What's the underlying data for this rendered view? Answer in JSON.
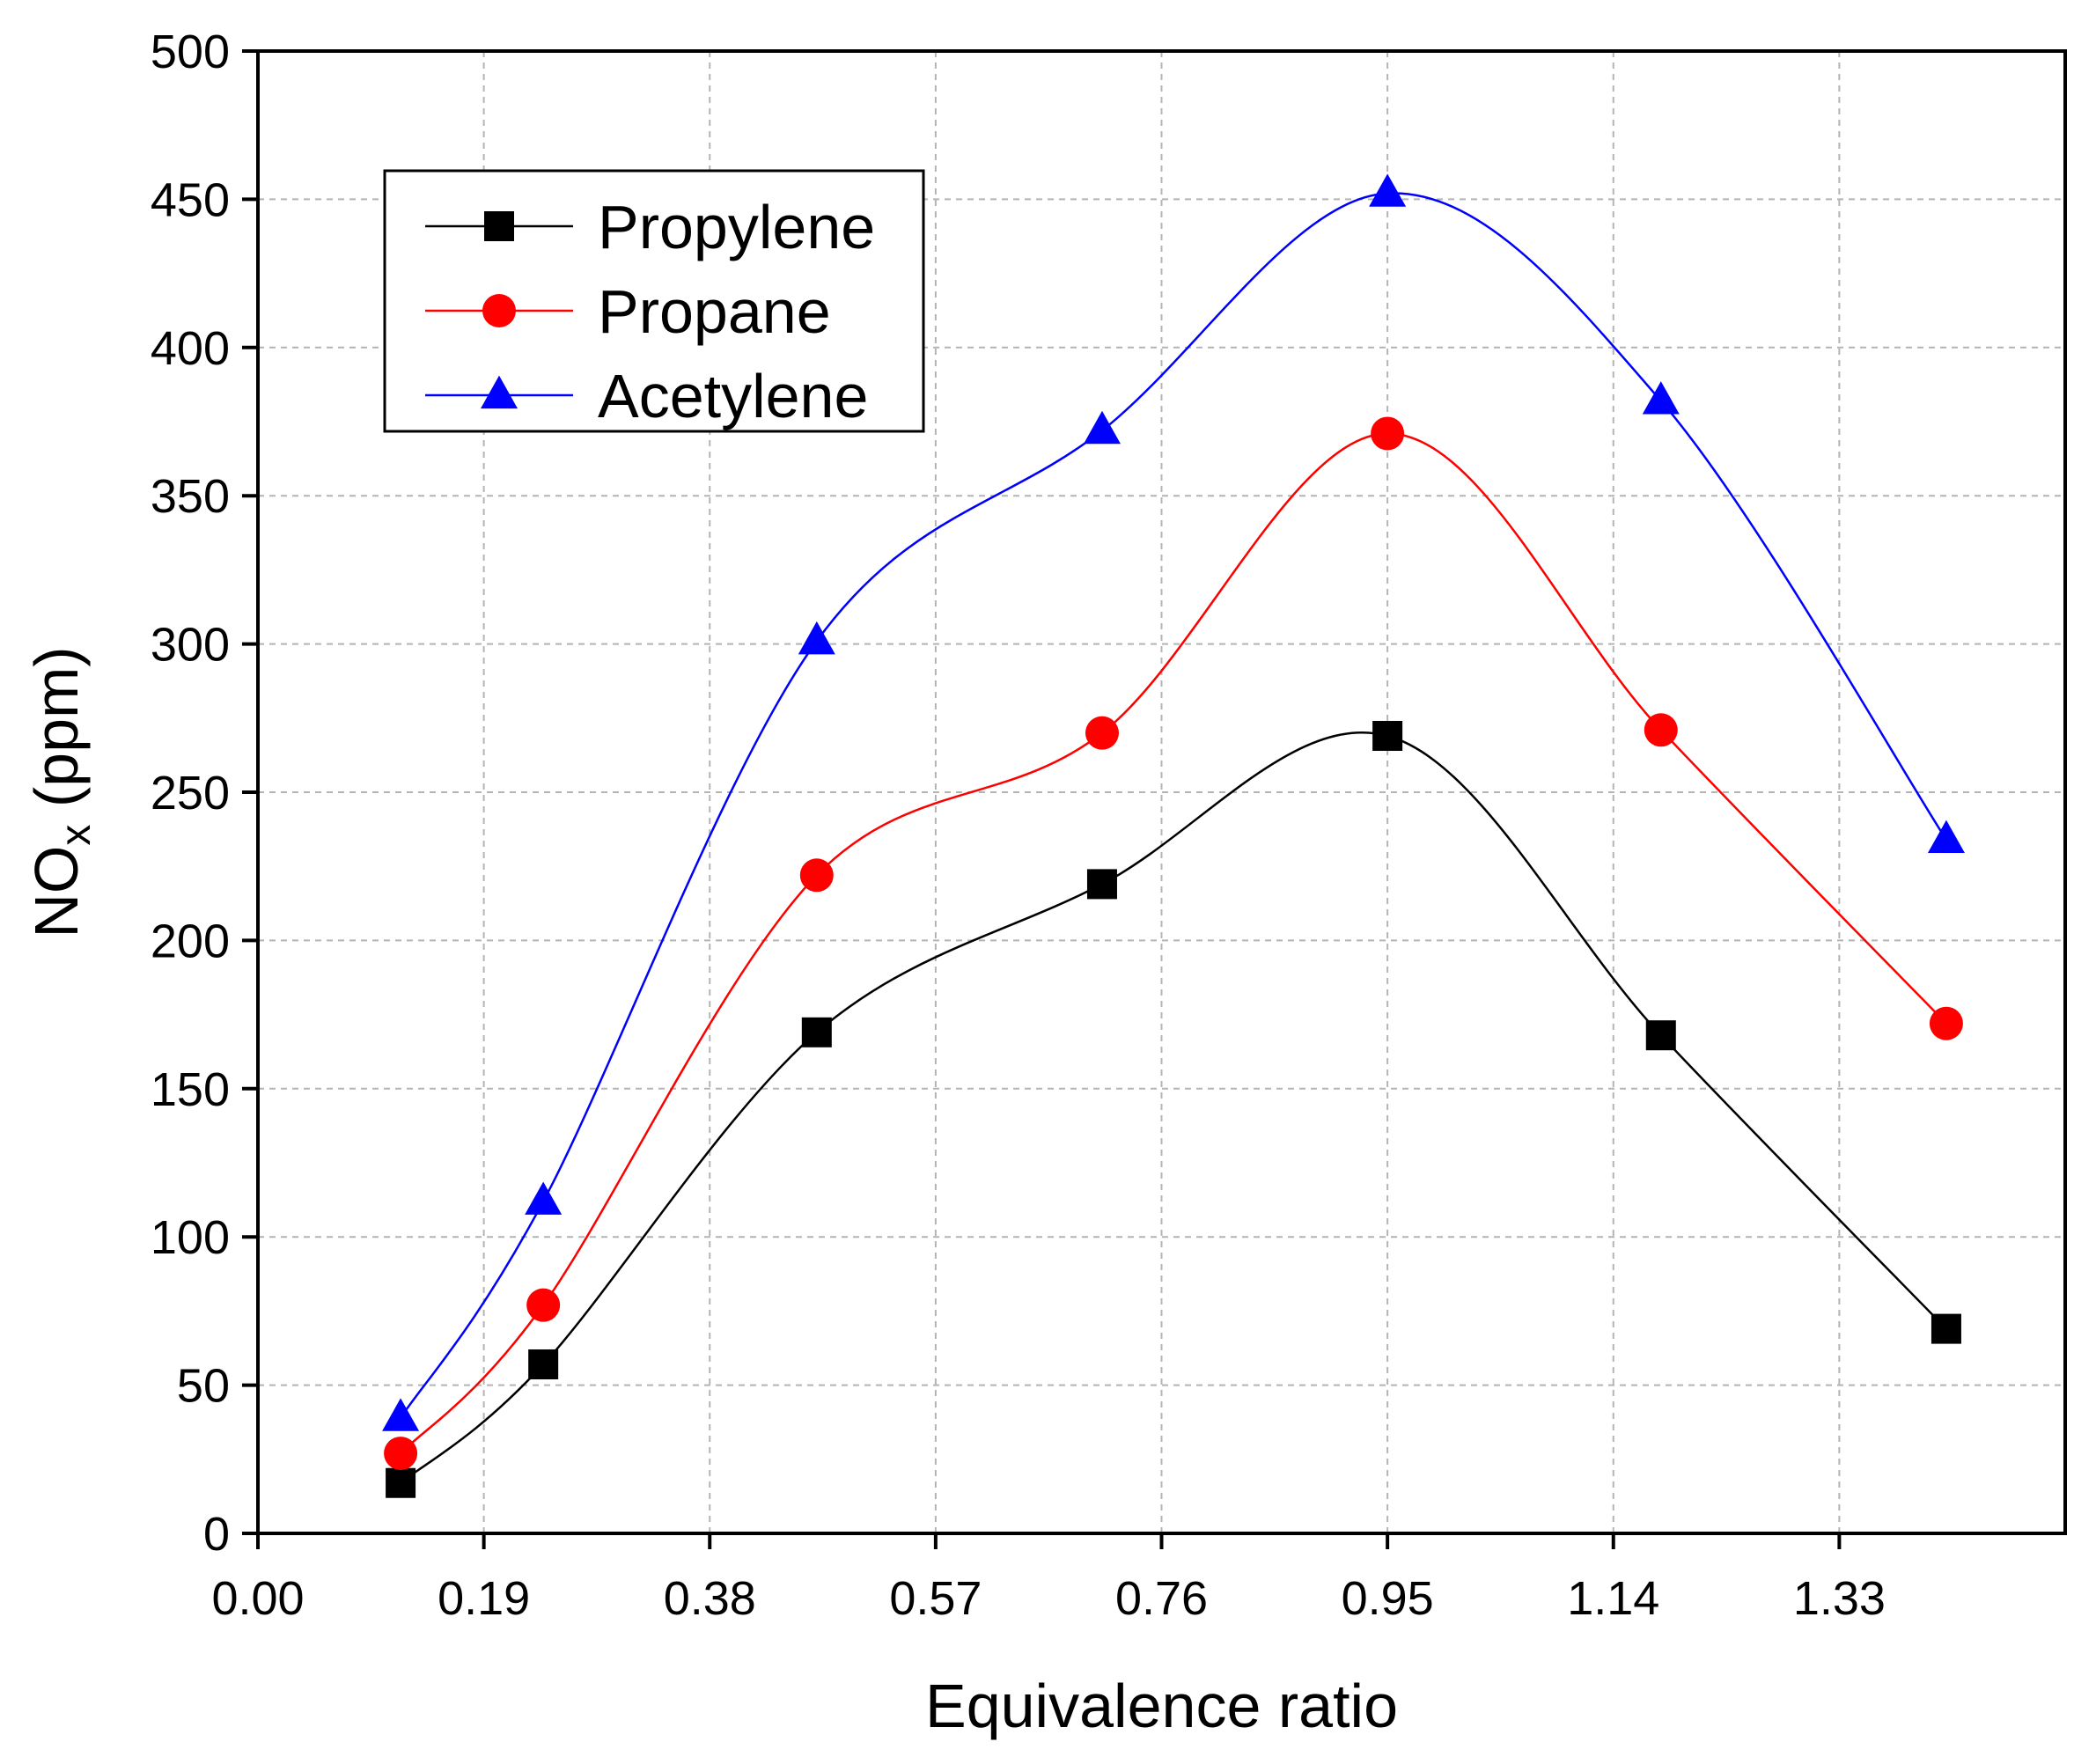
{
  "chart_data": {
    "type": "line",
    "title": "",
    "xlabel": "Equivalence ratio",
    "ylabel_main": "NO",
    "ylabel_sub": "x",
    "ylabel_unit": " (ppm)",
    "xlim": [
      0,
      1.52
    ],
    "ylim": [
      0,
      500
    ],
    "x_ticks": [
      "0.00",
      "0.19",
      "0.38",
      "0.57",
      "0.76",
      "0.95",
      "1.14",
      "1.33"
    ],
    "y_ticks": [
      "0",
      "50",
      "100",
      "150",
      "200",
      "250",
      "300",
      "350",
      "400",
      "450",
      "500"
    ],
    "grid": true,
    "smooth": true,
    "legend_position": "top-left",
    "x": [
      0.12,
      0.24,
      0.47,
      0.71,
      0.95,
      1.18,
      1.42
    ],
    "series": [
      {
        "name": "Propylene",
        "color": "#000000",
        "marker": "square",
        "values": [
          17,
          57,
          169,
          219,
          269,
          168,
          69
        ]
      },
      {
        "name": "Propane",
        "color": "#ff0000",
        "marker": "circle",
        "values": [
          27,
          77,
          222,
          270,
          371,
          271,
          172
        ]
      },
      {
        "name": "Acetylene",
        "color": "#0000ff",
        "marker": "triangle",
        "values": [
          39,
          112,
          301,
          372,
          452,
          382,
          234
        ]
      }
    ]
  }
}
